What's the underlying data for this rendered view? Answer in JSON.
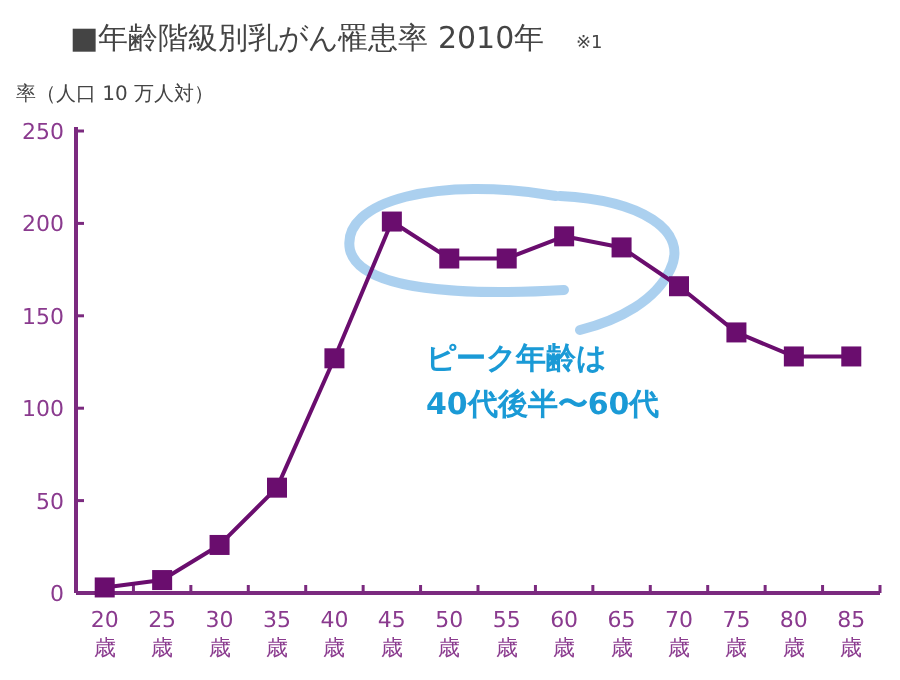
{
  "chart_data": {
    "type": "line",
    "title": "■年齢階級別乳がん罹患率 2010年",
    "ylabel": "率（人口 10 万人対）",
    "annotations": [
      "※1",
      "ピーク年齢は\n40代後半〜60代"
    ],
    "categories": [
      "20歳",
      "25歳",
      "30歳",
      "35歳",
      "40歳",
      "45歳",
      "50歳",
      "55歳",
      "60歳",
      "65歳",
      "70歳",
      "75歳",
      "80歳",
      "85歳"
    ],
    "series": [
      {
        "color": "#6a0d6e",
        "values": [
          3,
          7,
          26,
          57,
          127,
          201,
          181,
          181,
          193,
          187,
          166,
          141,
          128,
          128
        ]
      }
    ],
    "ylim": [
      0,
      250
    ],
    "yticks": [
      0,
      50,
      100,
      150,
      200,
      250
    ],
    "grid": false,
    "marker": "square",
    "line_style": "solid"
  }
}
